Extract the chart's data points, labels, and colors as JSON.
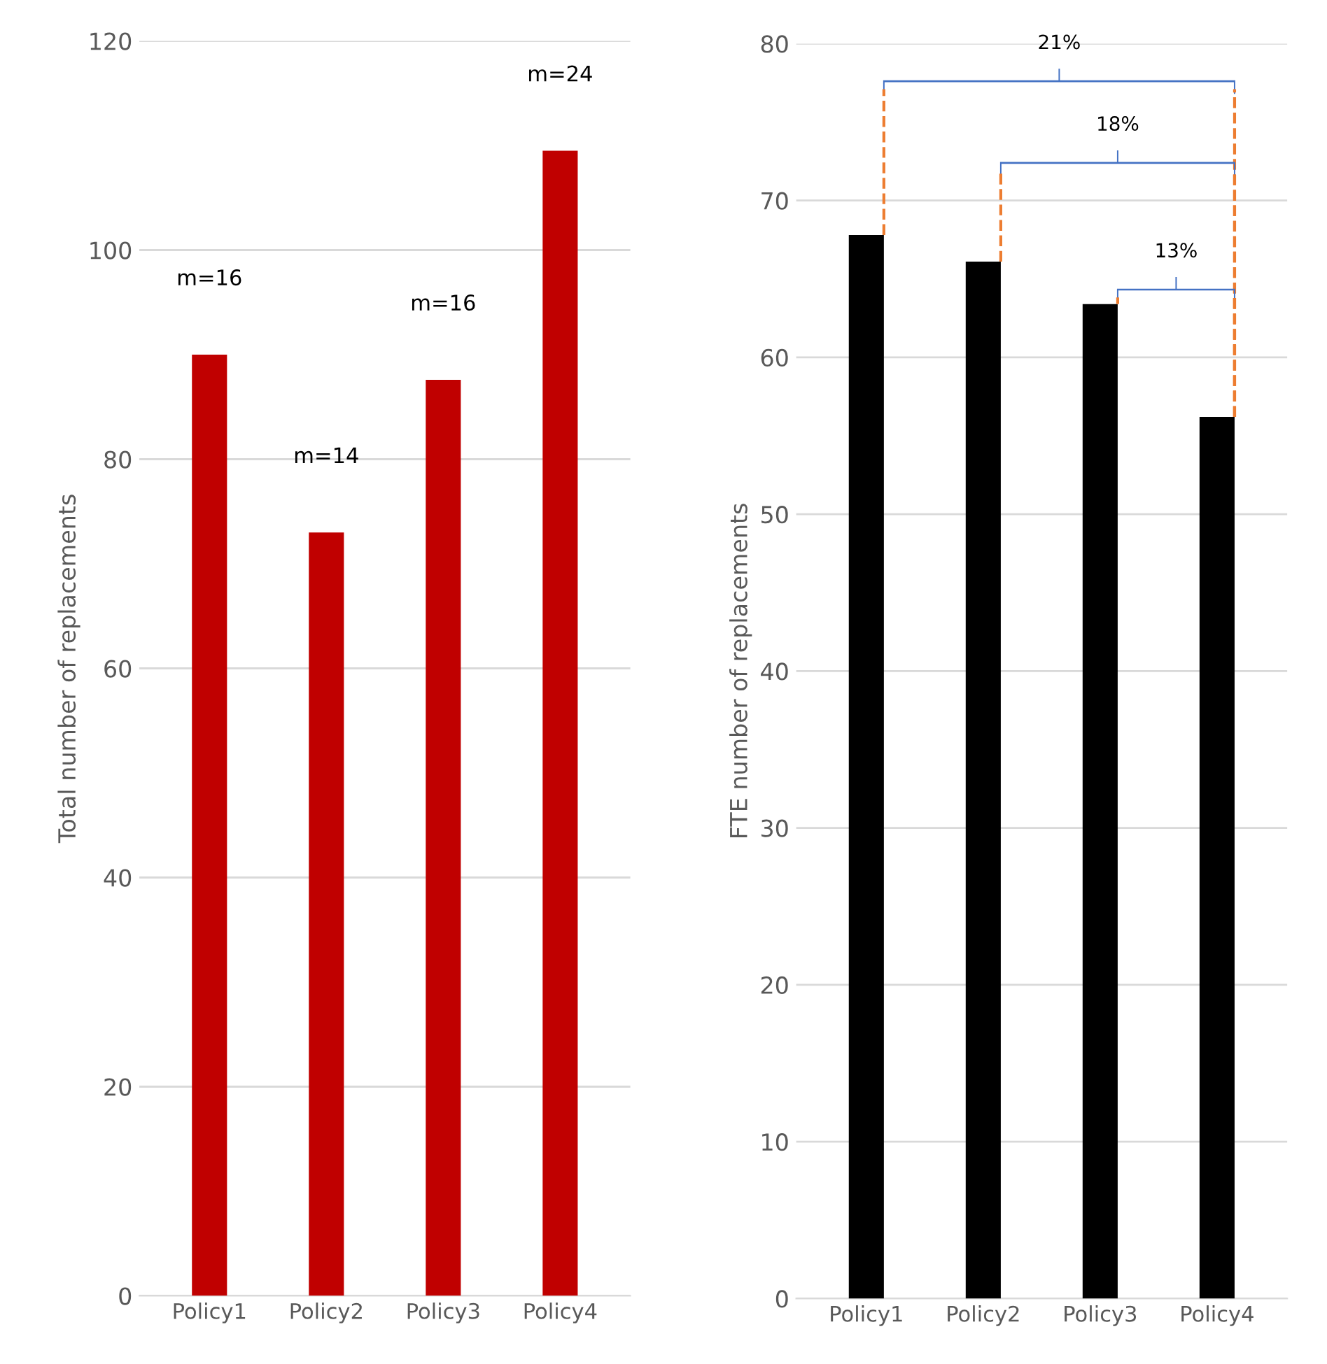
{
  "chart_data": [
    {
      "type": "bar",
      "ylabel": "Total number of replacements",
      "categories": [
        "Policy1",
        "Policy2",
        "Policy3",
        "Policy4"
      ],
      "values": [
        90.0,
        73.0,
        87.6,
        109.5
      ],
      "color": "#c00000",
      "ylim": [
        0,
        120
      ],
      "yticks": [
        0,
        20,
        40,
        60,
        80,
        100,
        120
      ],
      "grid": "y",
      "annotations": [
        "m=16",
        "m=14",
        "m=16",
        "m=24"
      ]
    },
    {
      "type": "bar",
      "ylabel": "FTE number of replacements",
      "categories": [
        "Policy1",
        "Policy2",
        "Policy3",
        "Policy4"
      ],
      "values": [
        67.8,
        66.1,
        63.4,
        56.2
      ],
      "color": "#000000",
      "ylim": [
        0,
        80
      ],
      "yticks": [
        0,
        10,
        20,
        30,
        40,
        50,
        60,
        70,
        80
      ],
      "grid": "y",
      "annotations": [
        "21%",
        "18%",
        "13%"
      ]
    }
  ]
}
